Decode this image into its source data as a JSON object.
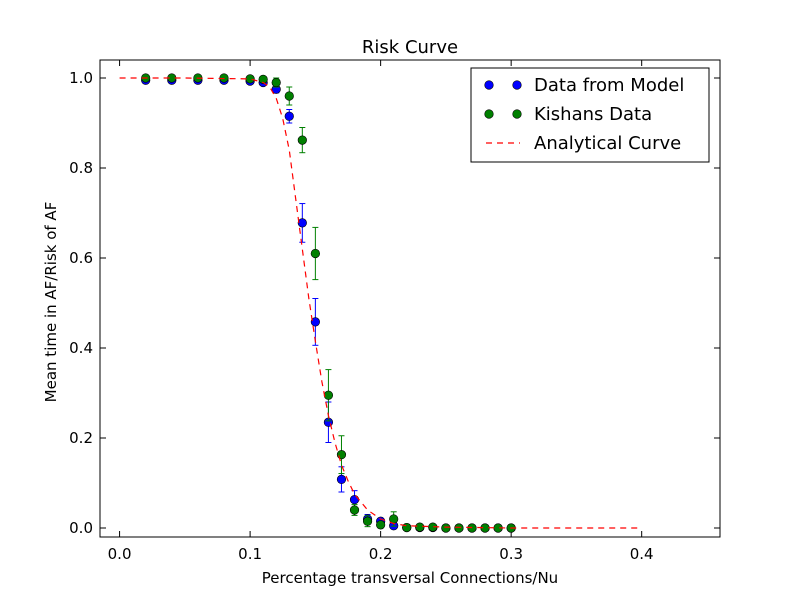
{
  "chart_data": {
    "type": "scatter",
    "title": "Risk Curve",
    "xlabel": "Percentage transversal Connections/Nu",
    "ylabel": "Mean time in AF/Risk of AF",
    "xlim": [
      -0.015,
      0.46
    ],
    "ylim": [
      -0.02,
      1.04
    ],
    "xticks": [
      0.0,
      0.1,
      0.2,
      0.3,
      0.4
    ],
    "xtick_labels": [
      "0.0",
      "0.1",
      "0.2",
      "0.3",
      "0.4"
    ],
    "yticks": [
      0.0,
      0.2,
      0.4,
      0.6,
      0.8,
      1.0
    ],
    "ytick_labels": [
      "0.0",
      "0.2",
      "0.4",
      "0.6",
      "0.8",
      "1.0"
    ],
    "grid": false,
    "legend_position": "top-right",
    "series": [
      {
        "name": "Data from Model",
        "color": "#0000ff",
        "marker": "circle",
        "x": [
          0.02,
          0.04,
          0.06,
          0.08,
          0.1,
          0.11,
          0.12,
          0.13,
          0.14,
          0.15,
          0.16,
          0.17,
          0.18,
          0.19,
          0.2,
          0.21,
          0.22,
          0.23,
          0.24,
          0.25,
          0.26,
          0.27,
          0.28,
          0.29,
          0.3
        ],
        "y": [
          0.995,
          0.995,
          0.995,
          0.995,
          0.993,
          0.99,
          0.975,
          0.915,
          0.678,
          0.458,
          0.235,
          0.108,
          0.063,
          0.02,
          0.015,
          0.005,
          0.001,
          0.001,
          0.001,
          0.0,
          0.0,
          0.0,
          0.0,
          0.0,
          0.0
        ],
        "err": [
          0.003,
          0.003,
          0.003,
          0.003,
          0.004,
          0.005,
          0.008,
          0.015,
          0.043,
          0.052,
          0.045,
          0.028,
          0.02,
          0.01,
          0.006,
          0.004,
          0.002,
          0.002,
          0.001,
          0.001,
          0.0,
          0.0,
          0.0,
          0.0,
          0.0
        ]
      },
      {
        "name": "Kishans Data",
        "color": "#008000",
        "marker": "circle",
        "x": [
          0.02,
          0.04,
          0.06,
          0.08,
          0.1,
          0.11,
          0.12,
          0.13,
          0.14,
          0.15,
          0.16,
          0.17,
          0.18,
          0.19,
          0.2,
          0.21,
          0.22,
          0.23,
          0.24,
          0.25,
          0.26,
          0.27,
          0.28,
          0.29,
          0.3
        ],
        "y": [
          1.0,
          1.0,
          1.0,
          1.0,
          0.998,
          0.997,
          0.99,
          0.96,
          0.862,
          0.61,
          0.295,
          0.163,
          0.04,
          0.015,
          0.007,
          0.02,
          0.001,
          0.002,
          0.002,
          0.0,
          0.0,
          0.0,
          0.0,
          0.0,
          0.0
        ],
        "err": [
          0.003,
          0.003,
          0.005,
          0.004,
          0.005,
          0.006,
          0.01,
          0.02,
          0.028,
          0.058,
          0.057,
          0.042,
          0.012,
          0.012,
          0.006,
          0.016,
          0.003,
          0.003,
          0.002,
          0.002,
          0.001,
          0.001,
          0.001,
          0.001,
          0.001
        ]
      },
      {
        "name": "Analytical Curve",
        "color": "#ff0000",
        "line_style": "dashed",
        "x": [
          0.0,
          0.05,
          0.1,
          0.11,
          0.115,
          0.12,
          0.125,
          0.13,
          0.135,
          0.14,
          0.145,
          0.15,
          0.155,
          0.16,
          0.165,
          0.17,
          0.175,
          0.18,
          0.19,
          0.2,
          0.21,
          0.22,
          0.25,
          0.3,
          0.35,
          0.4
        ],
        "y": [
          1.0,
          1.0,
          0.998,
          0.99,
          0.98,
          0.955,
          0.91,
          0.84,
          0.73,
          0.62,
          0.51,
          0.415,
          0.325,
          0.25,
          0.19,
          0.14,
          0.105,
          0.075,
          0.04,
          0.02,
          0.01,
          0.005,
          0.002,
          0.0,
          0.0,
          0.0
        ]
      }
    ]
  }
}
